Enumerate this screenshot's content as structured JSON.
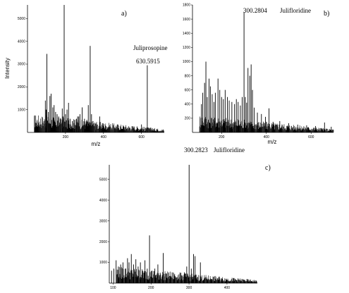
{
  "chart_data": [
    {
      "type": "bar",
      "panel_label": "a)",
      "xlabel": "m/z",
      "ylabel": "Intensity",
      "xlim": [
        0,
        720
      ],
      "ylim": [
        0,
        5600
      ],
      "xticks": [
        200,
        400,
        600
      ],
      "yticks": [
        1000,
        2000,
        3000,
        4000,
        5000
      ],
      "annotations": [
        {
          "text": "Juliprosopine",
          "anchor_x": 630.5915
        },
        {
          "text": "630.5915",
          "anchor_x": 630.5915
        }
      ],
      "peaks": [
        [
          102,
          3450
        ],
        [
          94,
          1400
        ],
        [
          98,
          1000
        ],
        [
          110,
          900
        ],
        [
          118,
          1600
        ],
        [
          124,
          1700
        ],
        [
          133,
          1100
        ],
        [
          140,
          1200
        ],
        [
          148,
          900
        ],
        [
          156,
          800
        ],
        [
          164,
          700
        ],
        [
          172,
          600
        ],
        [
          183,
          1050
        ],
        [
          187,
          700
        ],
        [
          193,
          5600
        ],
        [
          200,
          800
        ],
        [
          208,
          1000
        ],
        [
          216,
          1300
        ],
        [
          224,
          600
        ],
        [
          236,
          500
        ],
        [
          248,
          550
        ],
        [
          258,
          600
        ],
        [
          264,
          700
        ],
        [
          270,
          700
        ],
        [
          276,
          800
        ],
        [
          288,
          1100
        ],
        [
          300,
          600
        ],
        [
          312,
          550
        ],
        [
          320,
          1200
        ],
        [
          330,
          3800
        ],
        [
          337,
          800
        ],
        [
          345,
          500
        ],
        [
          360,
          400
        ],
        [
          380,
          700
        ],
        [
          394,
          400
        ],
        [
          410,
          300
        ],
        [
          430,
          250
        ],
        [
          460,
          200
        ],
        [
          500,
          150
        ],
        [
          560,
          200
        ],
        [
          600,
          350
        ],
        [
          622,
          200
        ],
        [
          630.5915,
          2950
        ],
        [
          650,
          200
        ],
        [
          680,
          150
        ]
      ]
    },
    {
      "type": "bar",
      "panel_label": "b)",
      "xlabel": "m/z",
      "xlim": [
        70,
        700
      ],
      "ylim": [
        0,
        1800
      ],
      "xticks": [
        200,
        400,
        600
      ],
      "yticks": [
        200,
        400,
        600,
        800,
        1000,
        1200,
        1400,
        1600,
        1800
      ],
      "annotations": [
        {
          "text": "300.2804",
          "anchor_x": 300.2804
        },
        {
          "text": "Julifloridine",
          "anchor_x": 300.2804
        }
      ],
      "peaks": [
        [
          110,
          400
        ],
        [
          116,
          560
        ],
        [
          124,
          700
        ],
        [
          130,
          1000
        ],
        [
          136,
          500
        ],
        [
          144,
          760
        ],
        [
          150,
          650
        ],
        [
          158,
          540
        ],
        [
          166,
          430
        ],
        [
          172,
          560
        ],
        [
          184,
          760
        ],
        [
          192,
          600
        ],
        [
          200,
          500
        ],
        [
          208,
          470
        ],
        [
          216,
          600
        ],
        [
          226,
          500
        ],
        [
          234,
          450
        ],
        [
          246,
          430
        ],
        [
          258,
          400
        ],
        [
          266,
          470
        ],
        [
          274,
          430
        ],
        [
          284,
          380
        ],
        [
          292,
          500
        ],
        [
          300.2804,
          1700
        ],
        [
          306,
          500
        ],
        [
          312,
          420
        ],
        [
          318,
          910
        ],
        [
          326,
          800
        ],
        [
          332,
          960
        ],
        [
          338,
          600
        ],
        [
          346,
          350
        ],
        [
          360,
          280
        ],
        [
          378,
          260
        ],
        [
          396,
          220
        ],
        [
          412,
          340
        ],
        [
          430,
          150
        ],
        [
          460,
          160
        ],
        [
          500,
          130
        ],
        [
          540,
          110
        ],
        [
          580,
          100
        ],
        [
          620,
          90
        ],
        [
          660,
          140
        ],
        [
          690,
          80
        ]
      ]
    },
    {
      "type": "bar",
      "panel_label": "c)",
      "xlim": [
        90,
        480
      ],
      "ylim": [
        0,
        5700
      ],
      "xticks": [
        100,
        200,
        300,
        400
      ],
      "yticks": [
        1000,
        2000,
        3000,
        4000,
        5000
      ],
      "annotations": [
        {
          "text": "300.2823",
          "anchor_x": 300.2823
        },
        {
          "text": "Julifloridine",
          "anchor_x": 300.2823
        }
      ],
      "peaks": [
        [
          96,
          600
        ],
        [
          102,
          700
        ],
        [
          108,
          1100
        ],
        [
          114,
          800
        ],
        [
          120,
          900
        ],
        [
          126,
          1000
        ],
        [
          132,
          700
        ],
        [
          138,
          1200
        ],
        [
          142,
          1000
        ],
        [
          148,
          1400
        ],
        [
          154,
          900
        ],
        [
          160,
          1150
        ],
        [
          166,
          800
        ],
        [
          172,
          1000
        ],
        [
          178,
          600
        ],
        [
          184,
          1100
        ],
        [
          190,
          700
        ],
        [
          196,
          2300
        ],
        [
          202,
          600
        ],
        [
          210,
          700
        ],
        [
          218,
          900
        ],
        [
          224,
          500
        ],
        [
          232,
          1450
        ],
        [
          240,
          450
        ],
        [
          250,
          350
        ],
        [
          262,
          400
        ],
        [
          270,
          300
        ],
        [
          280,
          380
        ],
        [
          288,
          520
        ],
        [
          294,
          800
        ],
        [
          300.2823,
          5700
        ],
        [
          306,
          700
        ],
        [
          312,
          1400
        ],
        [
          316,
          1300
        ],
        [
          322,
          300
        ],
        [
          330,
          1000
        ],
        [
          340,
          250
        ],
        [
          360,
          200
        ],
        [
          380,
          150
        ],
        [
          400,
          150
        ],
        [
          420,
          100
        ],
        [
          460,
          80
        ]
      ]
    }
  ]
}
